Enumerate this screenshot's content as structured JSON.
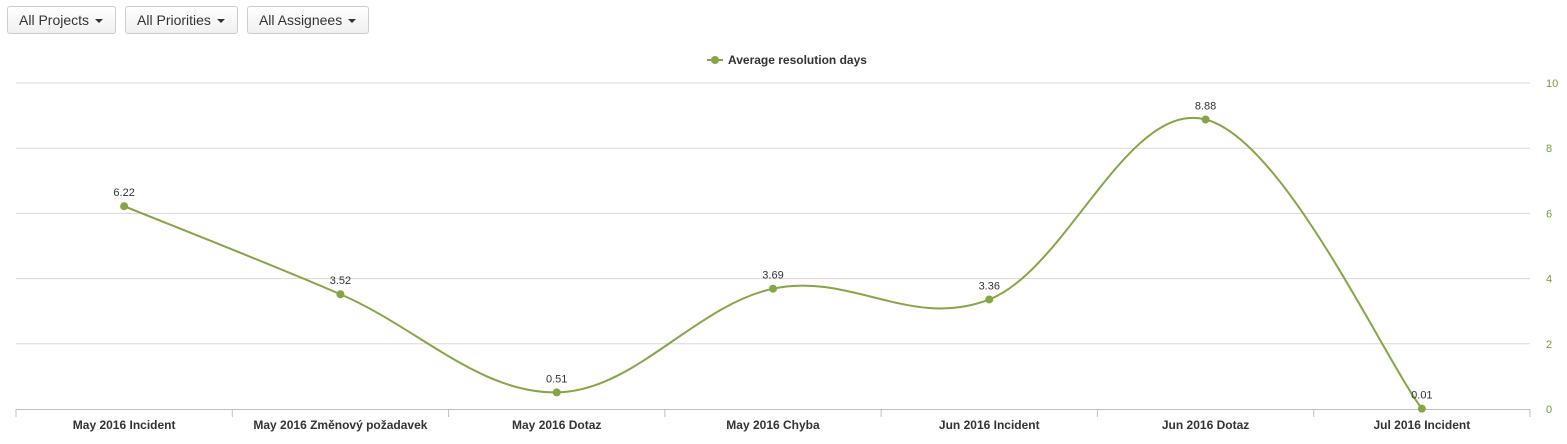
{
  "filters": [
    {
      "label": "All Projects"
    },
    {
      "label": "All Priorities"
    },
    {
      "label": "All Assignees"
    }
  ],
  "colors": {
    "series": "#86a545",
    "grid": "#d8d8d8",
    "axis_text": "#7a9a3a"
  },
  "chart_data": {
    "type": "line",
    "title": "",
    "xlabel": "",
    "ylabel": "",
    "categories": [
      "May 2016 Incident",
      "May 2016 Změnový požadavek",
      "May 2016 Dotaz",
      "May 2016 Chyba",
      "Jun 2016 Incident",
      "Jun 2016 Dotaz",
      "Jul 2016 Incident"
    ],
    "series": [
      {
        "name": "Average resolution days",
        "values": [
          6.22,
          3.52,
          0.51,
          3.69,
          3.36,
          8.88,
          0.01
        ],
        "labels": [
          "6.22",
          "3.52",
          "0.51",
          "3.69",
          "3.36",
          "8.88",
          "0.01"
        ]
      }
    ],
    "ylim": [
      0,
      10
    ],
    "yticks": [
      "0",
      "2",
      "4",
      "6",
      "8",
      "10"
    ],
    "y_axis_side": "right",
    "smooth": true,
    "grid": true,
    "legend": "top-center"
  }
}
